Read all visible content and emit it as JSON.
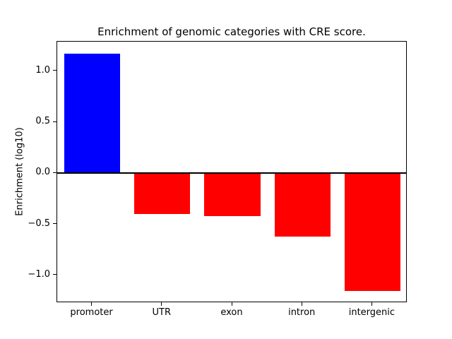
{
  "chart_data": {
    "type": "bar",
    "title": "Enrichment of genomic categories with CRE score.",
    "xlabel": "",
    "ylabel": "Enrichment (log10)",
    "categories": [
      "promoter",
      "UTR",
      "exon",
      "intron",
      "intergenic"
    ],
    "values": [
      1.17,
      -0.4,
      -0.42,
      -0.62,
      -1.15
    ],
    "bar_colors": [
      "#0000ff",
      "#ff0000",
      "#ff0000",
      "#ff0000",
      "#ff0000"
    ],
    "ylim": [
      -1.27,
      1.29
    ],
    "yticks": [
      -1.0,
      -0.5,
      0.0,
      0.5,
      1.0
    ],
    "ytick_decimals": 1,
    "zero_line": true,
    "zero_line_color": "#000000",
    "grid": false,
    "legend": false,
    "background_color": "#ffffff",
    "axis_color": "#000000"
  }
}
